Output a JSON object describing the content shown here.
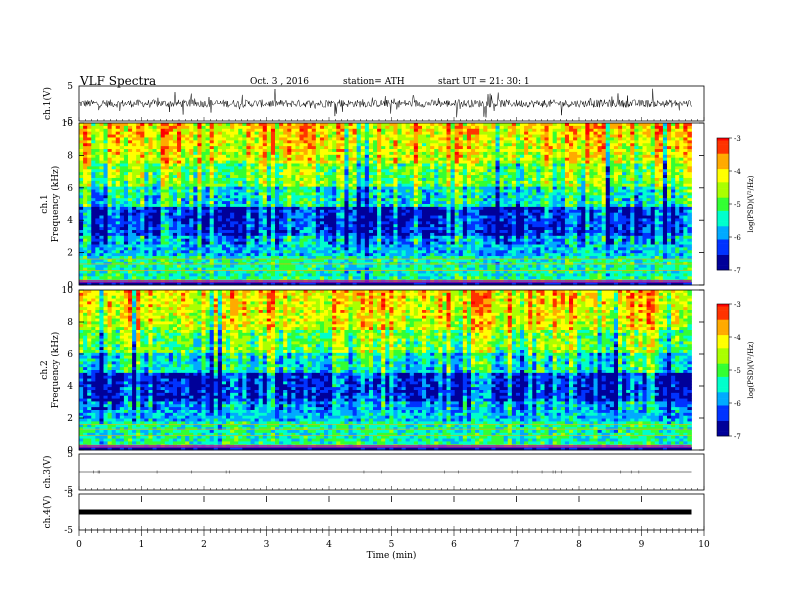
{
  "header": {
    "title": "VLF  Spectra",
    "date": "Oct. 3  , 2016",
    "station": "station= ATH",
    "start": "start  UT  =    21: 30: 1"
  },
  "chart_data": [
    {
      "type": "line",
      "name": "ch.1 waveform",
      "ylabel": "ch.1(V)",
      "yticks": [
        "5",
        "-5"
      ],
      "ylim": [
        -5,
        5
      ],
      "x_range_min": [
        0,
        10
      ]
    },
    {
      "type": "heatmap",
      "name": "ch.1 spectrogram",
      "ylabel": "ch.1\nFrequency  (kHz)",
      "ylabel_lines": [
        "ch.1",
        "Frequency  (kHz)"
      ],
      "yticks": [
        "0",
        "2",
        "4",
        "6",
        "8",
        "10"
      ],
      "ylim": [
        0,
        10
      ],
      "colorbar": {
        "label": "log(PSD)(V²/Hz)",
        "ticks": [
          "-3",
          "-4",
          "-5",
          "-6",
          "-7"
        ],
        "range": [
          -7,
          -3
        ]
      }
    },
    {
      "type": "heatmap",
      "name": "ch.2 spectrogram",
      "ylabel_lines": [
        "ch.2",
        "Frequency  (kHz)"
      ],
      "yticks": [
        "0",
        "2",
        "4",
        "6",
        "8",
        "10"
      ],
      "ylim": [
        0,
        10
      ],
      "colorbar": {
        "label": "log(PSD)(V²/Hz)",
        "ticks": [
          "-3",
          "-4",
          "-5",
          "-6",
          "-7"
        ],
        "range": [
          -7,
          -3
        ]
      }
    },
    {
      "type": "line",
      "name": "ch.3 waveform",
      "ylabel": "ch.3(V)",
      "yticks": [
        "5",
        "-5"
      ],
      "ylim": [
        -5,
        5
      ]
    },
    {
      "type": "line",
      "name": "ch.4 waveform",
      "ylabel": "ch.4(V)",
      "yticks": [
        "5",
        "-5"
      ],
      "ylim": [
        -5,
        5
      ]
    }
  ],
  "xaxis": {
    "label": "Time  (min)",
    "ticks": [
      "0",
      "1",
      "2",
      "3",
      "4",
      "5",
      "6",
      "7",
      "8",
      "9",
      "10"
    ],
    "range": [
      0,
      10
    ],
    "data_end_min": 9.8
  },
  "colors": {
    "colormap": [
      "#000099",
      "#0033ff",
      "#00aaff",
      "#00ffcc",
      "#33ff33",
      "#aaff00",
      "#ffff00",
      "#ffaa00",
      "#ff3300",
      "#ff0000",
      "#ffdede"
    ]
  }
}
